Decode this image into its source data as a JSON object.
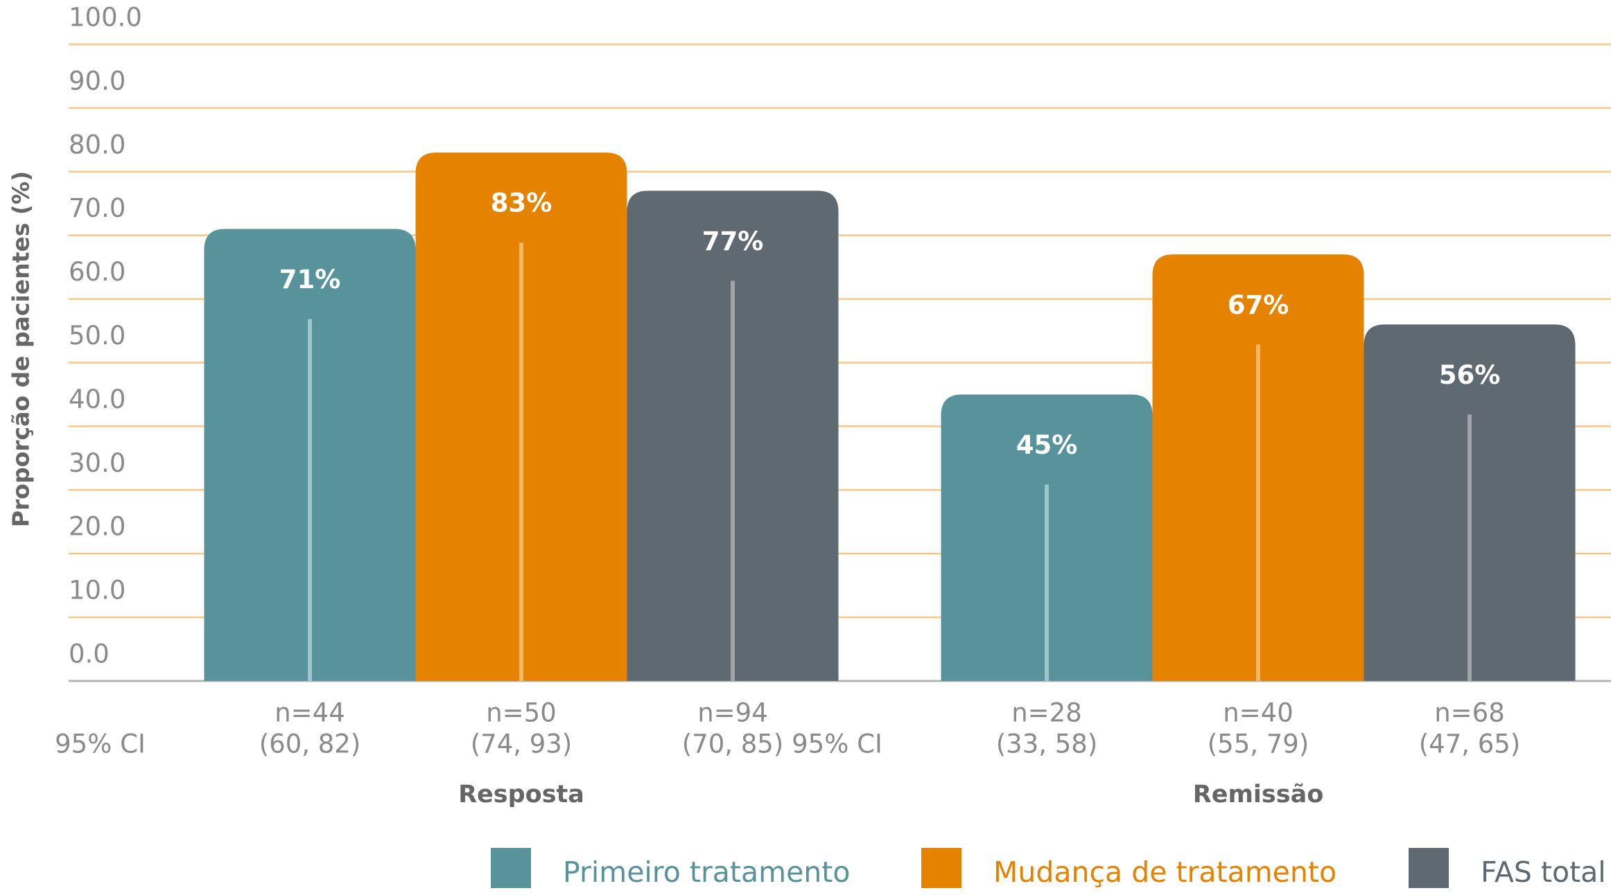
{
  "chart_data": {
    "type": "bar",
    "y_label": "Proporção de pacientes (%)",
    "categories": [
      "Resposta",
      "Remissão"
    ],
    "ci_label": "95% CI",
    "series": [
      {
        "name": "Primeiro tratamento",
        "color": "#58939b",
        "values": [
          71,
          45
        ],
        "value_labels": [
          "71%",
          "45%"
        ],
        "n": [
          "n=44",
          "n=28"
        ],
        "ci": [
          "(60, 82)",
          "(33, 58)"
        ]
      },
      {
        "name": "Mudança de tratamento",
        "color": "#e58200",
        "values": [
          83,
          67
        ],
        "value_labels": [
          "83%",
          "67%"
        ],
        "n": [
          "n=50",
          "n=40"
        ],
        "ci": [
          "(74, 93)",
          "(55, 79)"
        ]
      },
      {
        "name": "FAS total",
        "color": "#5f6971",
        "values": [
          77,
          56
        ],
        "value_labels": [
          "77%",
          "56%"
        ],
        "n": [
          "n=94",
          "n=68"
        ],
        "ci": [
          "(70, 85)",
          "(47, 65)"
        ]
      }
    ],
    "ylim": [
      0,
      100
    ],
    "yticks": [
      {
        "value": 0,
        "label": "0.0"
      },
      {
        "value": 10,
        "label": "10.0"
      },
      {
        "value": 20,
        "label": "20.0"
      },
      {
        "value": 30,
        "label": "30.0"
      },
      {
        "value": 40,
        "label": "40.0"
      },
      {
        "value": 50,
        "label": "50.0"
      },
      {
        "value": 60,
        "label": "60.0"
      },
      {
        "value": 70,
        "label": "70.0"
      },
      {
        "value": 80,
        "label": "80.0"
      },
      {
        "value": 90,
        "label": "90.0"
      },
      {
        "value": 100,
        "label": "100.0"
      }
    ],
    "grid": true
  }
}
